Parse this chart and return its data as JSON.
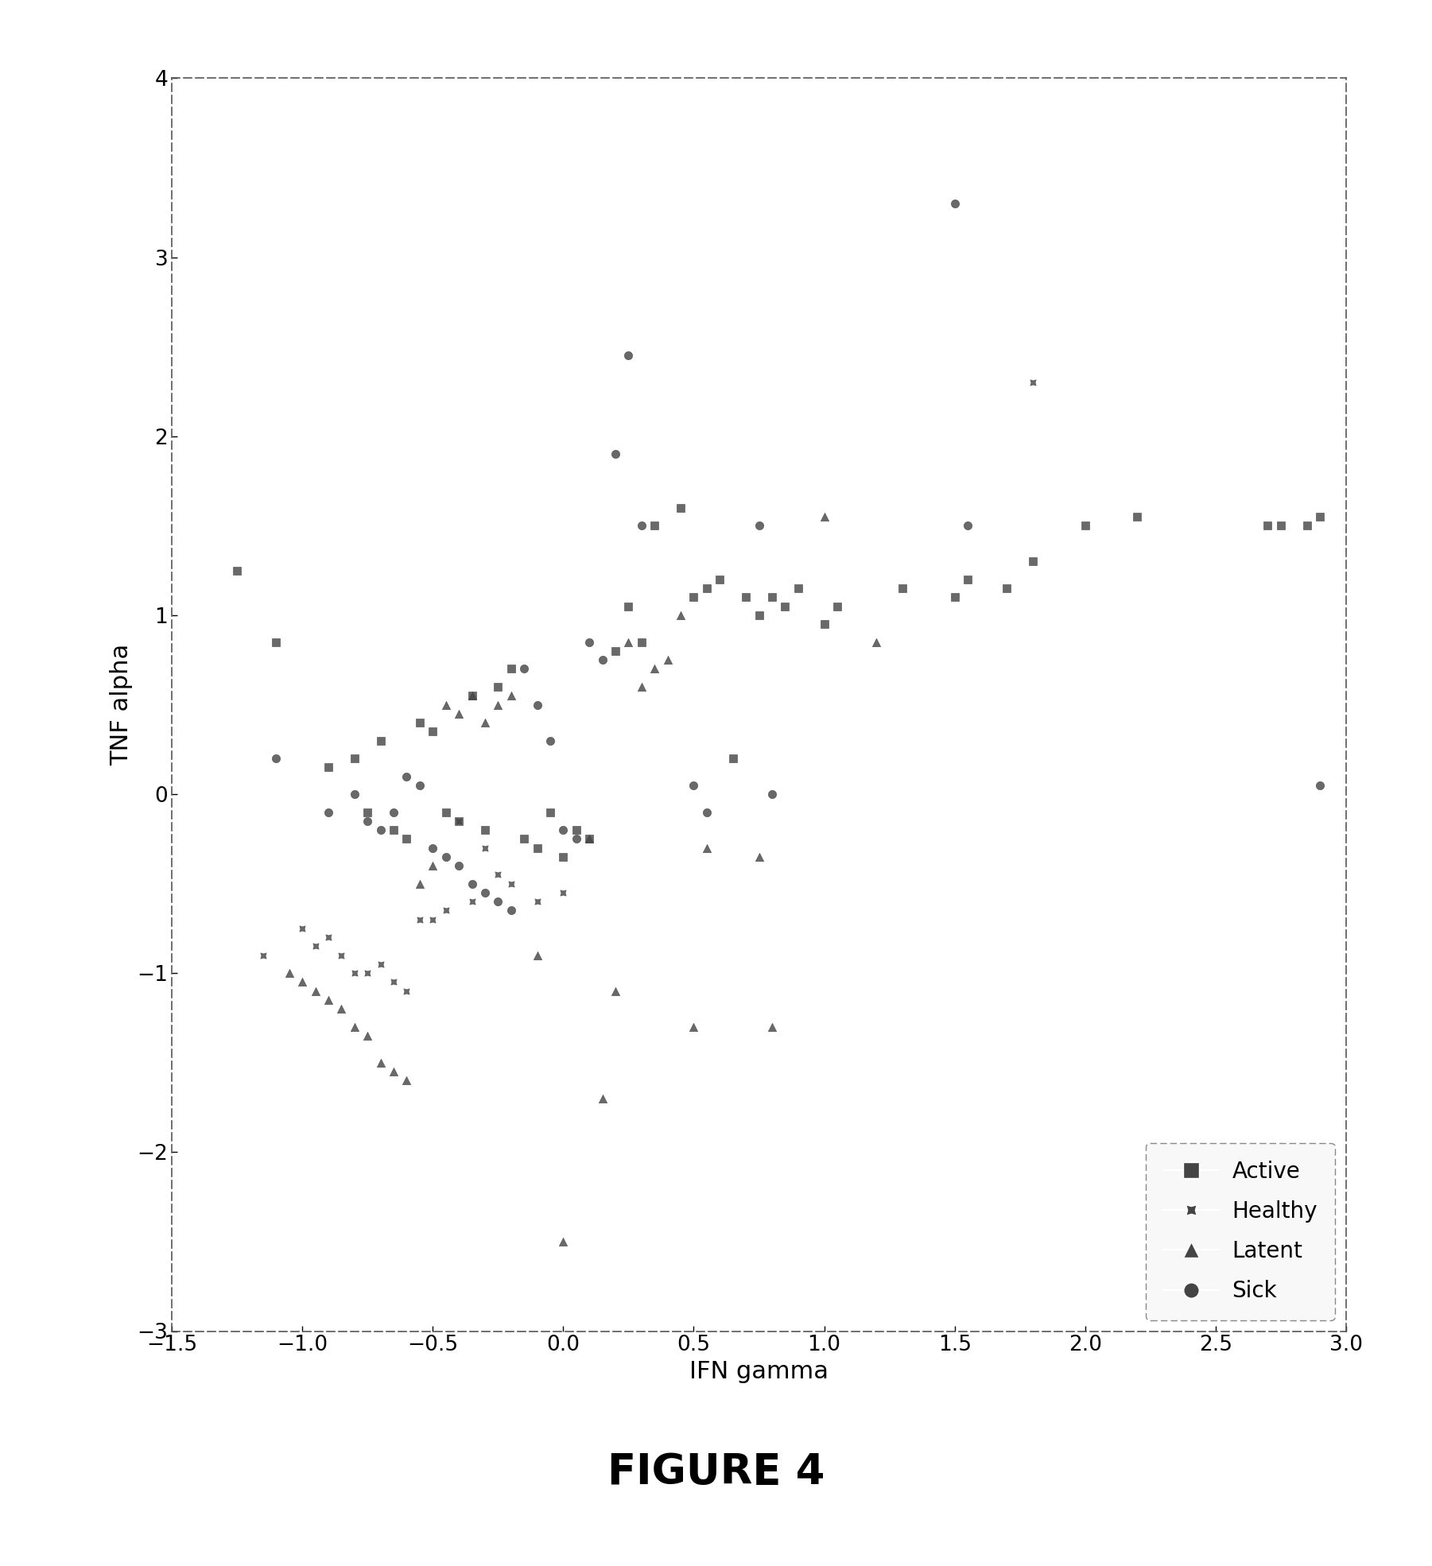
{
  "active_x": [
    -1.25,
    -1.1,
    -0.9,
    -0.8,
    -0.75,
    -0.7,
    -0.65,
    -0.6,
    -0.55,
    -0.5,
    -0.45,
    -0.4,
    -0.35,
    -0.3,
    -0.25,
    -0.2,
    -0.15,
    -0.1,
    -0.05,
    0.0,
    0.05,
    0.1,
    0.2,
    0.25,
    0.3,
    0.35,
    0.45,
    0.5,
    0.55,
    0.6,
    0.65,
    0.7,
    0.75,
    0.8,
    0.85,
    0.9,
    1.0,
    1.05,
    1.3,
    1.5,
    1.55,
    1.7,
    1.8,
    2.0,
    2.2,
    2.7,
    2.75,
    2.85,
    2.9
  ],
  "active_y": [
    1.25,
    0.85,
    0.15,
    0.2,
    -0.1,
    0.3,
    -0.2,
    -0.25,
    0.4,
    0.35,
    -0.1,
    -0.15,
    0.55,
    -0.2,
    0.6,
    0.7,
    -0.25,
    -0.3,
    -0.1,
    -0.35,
    -0.2,
    -0.25,
    0.8,
    1.05,
    0.85,
    1.5,
    1.6,
    1.1,
    1.15,
    1.2,
    0.2,
    1.1,
    1.0,
    1.1,
    1.05,
    1.15,
    0.95,
    1.05,
    1.15,
    1.1,
    1.2,
    1.15,
    1.3,
    1.5,
    1.55,
    1.5,
    1.5,
    1.5,
    1.55
  ],
  "healthy_x": [
    -1.15,
    -1.0,
    -0.95,
    -0.9,
    -0.85,
    -0.8,
    -0.75,
    -0.7,
    -0.65,
    -0.6,
    -0.55,
    -0.5,
    -0.45,
    -0.4,
    -0.35,
    -0.3,
    -0.25,
    -0.2,
    -0.1,
    0.0,
    1.8
  ],
  "healthy_y": [
    -0.9,
    -0.75,
    -0.85,
    -0.8,
    -0.9,
    -1.0,
    -1.0,
    -0.95,
    -1.05,
    -1.1,
    -0.7,
    -0.7,
    -0.65,
    -0.15,
    -0.6,
    -0.3,
    -0.45,
    -0.5,
    -0.6,
    -0.55,
    2.3
  ],
  "latent_x": [
    -1.05,
    -1.0,
    -0.95,
    -0.9,
    -0.85,
    -0.8,
    -0.75,
    -0.7,
    -0.65,
    -0.6,
    -0.55,
    -0.5,
    -0.45,
    -0.4,
    -0.35,
    -0.3,
    -0.25,
    -0.2,
    -0.1,
    0.0,
    0.1,
    0.15,
    0.2,
    0.25,
    0.3,
    0.35,
    0.4,
    0.45,
    0.5,
    0.55,
    0.75,
    0.8,
    1.0,
    1.2
  ],
  "latent_y": [
    -1.0,
    -1.05,
    -1.1,
    -1.15,
    -1.2,
    -1.3,
    -1.35,
    -1.5,
    -1.55,
    -1.6,
    -0.5,
    -0.4,
    0.5,
    0.45,
    0.55,
    0.4,
    0.5,
    0.55,
    -0.9,
    -2.5,
    -0.25,
    -1.7,
    -1.1,
    0.85,
    0.6,
    0.7,
    0.75,
    1.0,
    -1.3,
    -0.3,
    -0.35,
    -1.3,
    1.55,
    0.85
  ],
  "sick_x": [
    -1.1,
    -0.9,
    -0.8,
    -0.75,
    -0.7,
    -0.65,
    -0.6,
    -0.55,
    -0.5,
    -0.45,
    -0.4,
    -0.35,
    -0.3,
    -0.25,
    -0.2,
    -0.15,
    -0.1,
    -0.05,
    0.0,
    0.05,
    0.1,
    0.15,
    0.2,
    0.25,
    0.3,
    0.5,
    0.55,
    0.75,
    0.8,
    1.5,
    1.55,
    2.9
  ],
  "sick_y": [
    0.2,
    -0.1,
    0.0,
    -0.15,
    -0.2,
    -0.1,
    0.1,
    0.05,
    -0.3,
    -0.35,
    -0.4,
    -0.5,
    -0.55,
    -0.6,
    -0.65,
    0.7,
    0.5,
    0.3,
    -0.2,
    -0.25,
    0.85,
    0.75,
    1.9,
    2.45,
    1.5,
    0.05,
    -0.1,
    1.5,
    0.0,
    3.3,
    1.5,
    0.05
  ],
  "xlim": [
    -1.5,
    3.0
  ],
  "ylim": [
    -3.0,
    4.0
  ],
  "xticks": [
    -1.5,
    -1.0,
    -0.5,
    0.0,
    0.5,
    1.0,
    1.5,
    2.0,
    2.5,
    3.0
  ],
  "yticks": [
    -3.0,
    -2.0,
    -1.0,
    0.0,
    1.0,
    2.0,
    3.0,
    4.0
  ],
  "xlabel": "IFN gamma",
  "ylabel": "TNF alpha",
  "figure_title": "FIGURE 4",
  "marker_color": "#444444",
  "background_color": "#ffffff",
  "marker_size": 55,
  "legend_labels": [
    "Active",
    "Healthy",
    "Latent",
    "Sick"
  ]
}
